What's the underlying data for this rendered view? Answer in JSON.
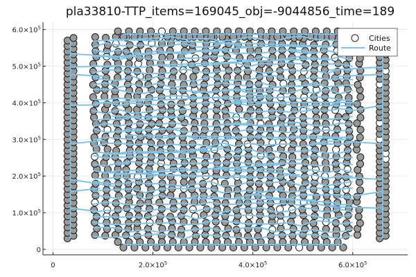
{
  "chart_data": {
    "type": "scatter",
    "title": "pla33810-TTP_items=169045_obj=-9044856_time=189",
    "xlabel": "",
    "ylabel": "",
    "xlim": [
      -20000,
      710000
    ],
    "ylim": [
      -15000,
      620000
    ],
    "x_ticks": [
      {
        "value": 0,
        "mantissa": "0",
        "exp": ""
      },
      {
        "value": 200000,
        "mantissa": "2.0×10",
        "exp": "5"
      },
      {
        "value": 400000,
        "mantissa": "4.0×10",
        "exp": "5"
      },
      {
        "value": 600000,
        "mantissa": "6.0×10",
        "exp": "5"
      }
    ],
    "y_ticks": [
      {
        "value": 0,
        "mantissa": "0",
        "exp": ""
      },
      {
        "value": 100000,
        "mantissa": "1.0×10",
        "exp": "5"
      },
      {
        "value": 200000,
        "mantissa": "2.0×10",
        "exp": "5"
      },
      {
        "value": 300000,
        "mantissa": "3.0×10",
        "exp": "5"
      },
      {
        "value": 400000,
        "mantissa": "4.0×10",
        "exp": "5"
      },
      {
        "value": 500000,
        "mantissa": "5.0×10",
        "exp": "5"
      },
      {
        "value": 600000,
        "mantissa": "6.0×10",
        "exp": "5"
      }
    ],
    "grid": true,
    "legend_position": "top-right",
    "series": [
      {
        "name": "Cities",
        "kind": "scatter",
        "marker": "circle",
        "fill": "#9a9a9a",
        "edge": "#1a1a1a"
      },
      {
        "name": "Route",
        "kind": "line",
        "color": "#7fc4e8"
      }
    ],
    "cities_layout": {
      "left_column_x": 35000,
      "right_column_x": 660000,
      "side_y_range": [
        30000,
        570000
      ],
      "main_block_x_range": [
        80000,
        610000
      ],
      "main_block_y_range": [
        35000,
        575000
      ],
      "top_row_y": 595000,
      "bottom_row_y": 5000
    }
  }
}
